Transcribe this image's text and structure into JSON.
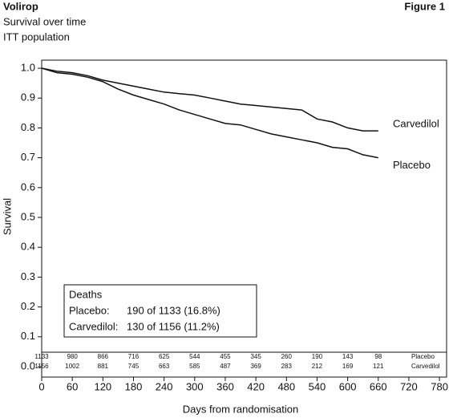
{
  "chart_data": {
    "type": "line",
    "title": "Volirop",
    "figure_label": "Figure 1",
    "subtitle": "Survival over time",
    "subtitle2": "ITT population",
    "y_label": "Survival",
    "x_label": "Days from randomisation",
    "x": [
      0,
      30,
      60,
      90,
      120,
      150,
      180,
      210,
      240,
      270,
      300,
      330,
      360,
      390,
      420,
      450,
      480,
      510,
      540,
      570,
      600,
      630,
      660
    ],
    "series": [
      {
        "name": "Carvedilol",
        "color": "#111111",
        "values": [
          1.0,
          0.99,
          0.985,
          0.975,
          0.96,
          0.95,
          0.94,
          0.93,
          0.92,
          0.915,
          0.91,
          0.9,
          0.89,
          0.88,
          0.875,
          0.87,
          0.865,
          0.86,
          0.83,
          0.82,
          0.8,
          0.79,
          0.79
        ]
      },
      {
        "name": "Placebo",
        "color": "#111111",
        "values": [
          1.0,
          0.985,
          0.98,
          0.97,
          0.955,
          0.93,
          0.91,
          0.895,
          0.88,
          0.86,
          0.845,
          0.83,
          0.815,
          0.81,
          0.795,
          0.78,
          0.77,
          0.76,
          0.75,
          0.735,
          0.73,
          0.71,
          0.7
        ]
      }
    ],
    "xlim": [
      0,
      794
    ],
    "ylim": [
      -0.035,
      1.027
    ],
    "xticks": [
      0,
      60,
      120,
      180,
      240,
      300,
      360,
      420,
      480,
      540,
      600,
      660,
      720,
      780
    ],
    "yticks": [
      {
        "value": 0,
        "label": "0.0"
      },
      0.1,
      0.2,
      0.3,
      0.4,
      0.5,
      0.6,
      0.7,
      0.8,
      0.9,
      {
        "value": 1,
        "label": "1.0"
      }
    ],
    "at_risk": {
      "days": [
        0,
        60,
        120,
        180,
        240,
        300,
        360,
        420,
        480,
        540,
        600,
        660
      ],
      "rows": [
        {
          "name": "Placebo",
          "values": [
            1133,
            980,
            866,
            716,
            625,
            544,
            455,
            345,
            260,
            190,
            143,
            98
          ]
        },
        {
          "name": "Carvedilol",
          "values": [
            1156,
            1002,
            881,
            745,
            663,
            585,
            487,
            369,
            283,
            212,
            169,
            121
          ]
        }
      ]
    },
    "deaths": {
      "title": "Deaths",
      "rows": [
        {
          "label": "Placebo:",
          "text": "190 of 1133 (16.8%)"
        },
        {
          "label": "Carvedilol:",
          "text": "130 of 1156 (11.2%)"
        }
      ]
    }
  }
}
